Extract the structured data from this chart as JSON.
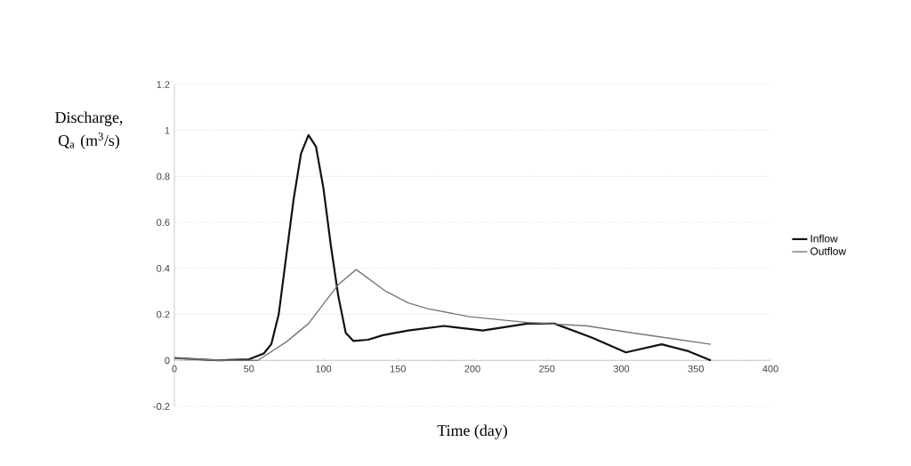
{
  "chart_data": {
    "type": "line",
    "xlabel": "Time (day)",
    "ylabel": "Discharge, Q$_{a}$ (m$^{3}$/s)",
    "xlim": [
      0,
      400
    ],
    "xticks": [
      0,
      50,
      100,
      150,
      200,
      250,
      300,
      350,
      400
    ],
    "ylim": [
      -0.2,
      1.2
    ],
    "yticks": [
      -0.2,
      0,
      0.2,
      0.4,
      0.6,
      0.8,
      1,
      1.2
    ],
    "grid": "y",
    "legend": "right",
    "marker": "none",
    "line_style": "solid",
    "series": [
      {
        "name": "Inflow",
        "color": "#111111",
        "x": [
          0,
          30,
          50,
          60,
          65,
          70,
          75,
          80,
          85,
          90,
          95,
          100,
          105,
          110,
          115,
          120,
          130,
          140,
          157,
          181,
          207,
          237,
          255,
          280,
          303,
          327,
          345,
          360
        ],
        "values": [
          0.01,
          0,
          0.005,
          0.03,
          0.07,
          0.2,
          0.45,
          0.7,
          0.9,
          0.98,
          0.93,
          0.75,
          0.5,
          0.28,
          0.12,
          0.085,
          0.09,
          0.11,
          0.13,
          0.15,
          0.13,
          0.16,
          0.16,
          0.1,
          0.035,
          0.07,
          0.04,
          0
        ]
      },
      {
        "name": "Outflow",
        "color": "#777777",
        "x": [
          0,
          30,
          56,
          75,
          90,
          110,
          122,
          142,
          157,
          170,
          198,
          237,
          277,
          307,
          360
        ],
        "values": [
          0.01,
          0,
          0,
          0.08,
          0.16,
          0.33,
          0.395,
          0.3,
          0.25,
          0.225,
          0.19,
          0.165,
          0.15,
          0.12,
          0.07
        ]
      }
    ]
  }
}
